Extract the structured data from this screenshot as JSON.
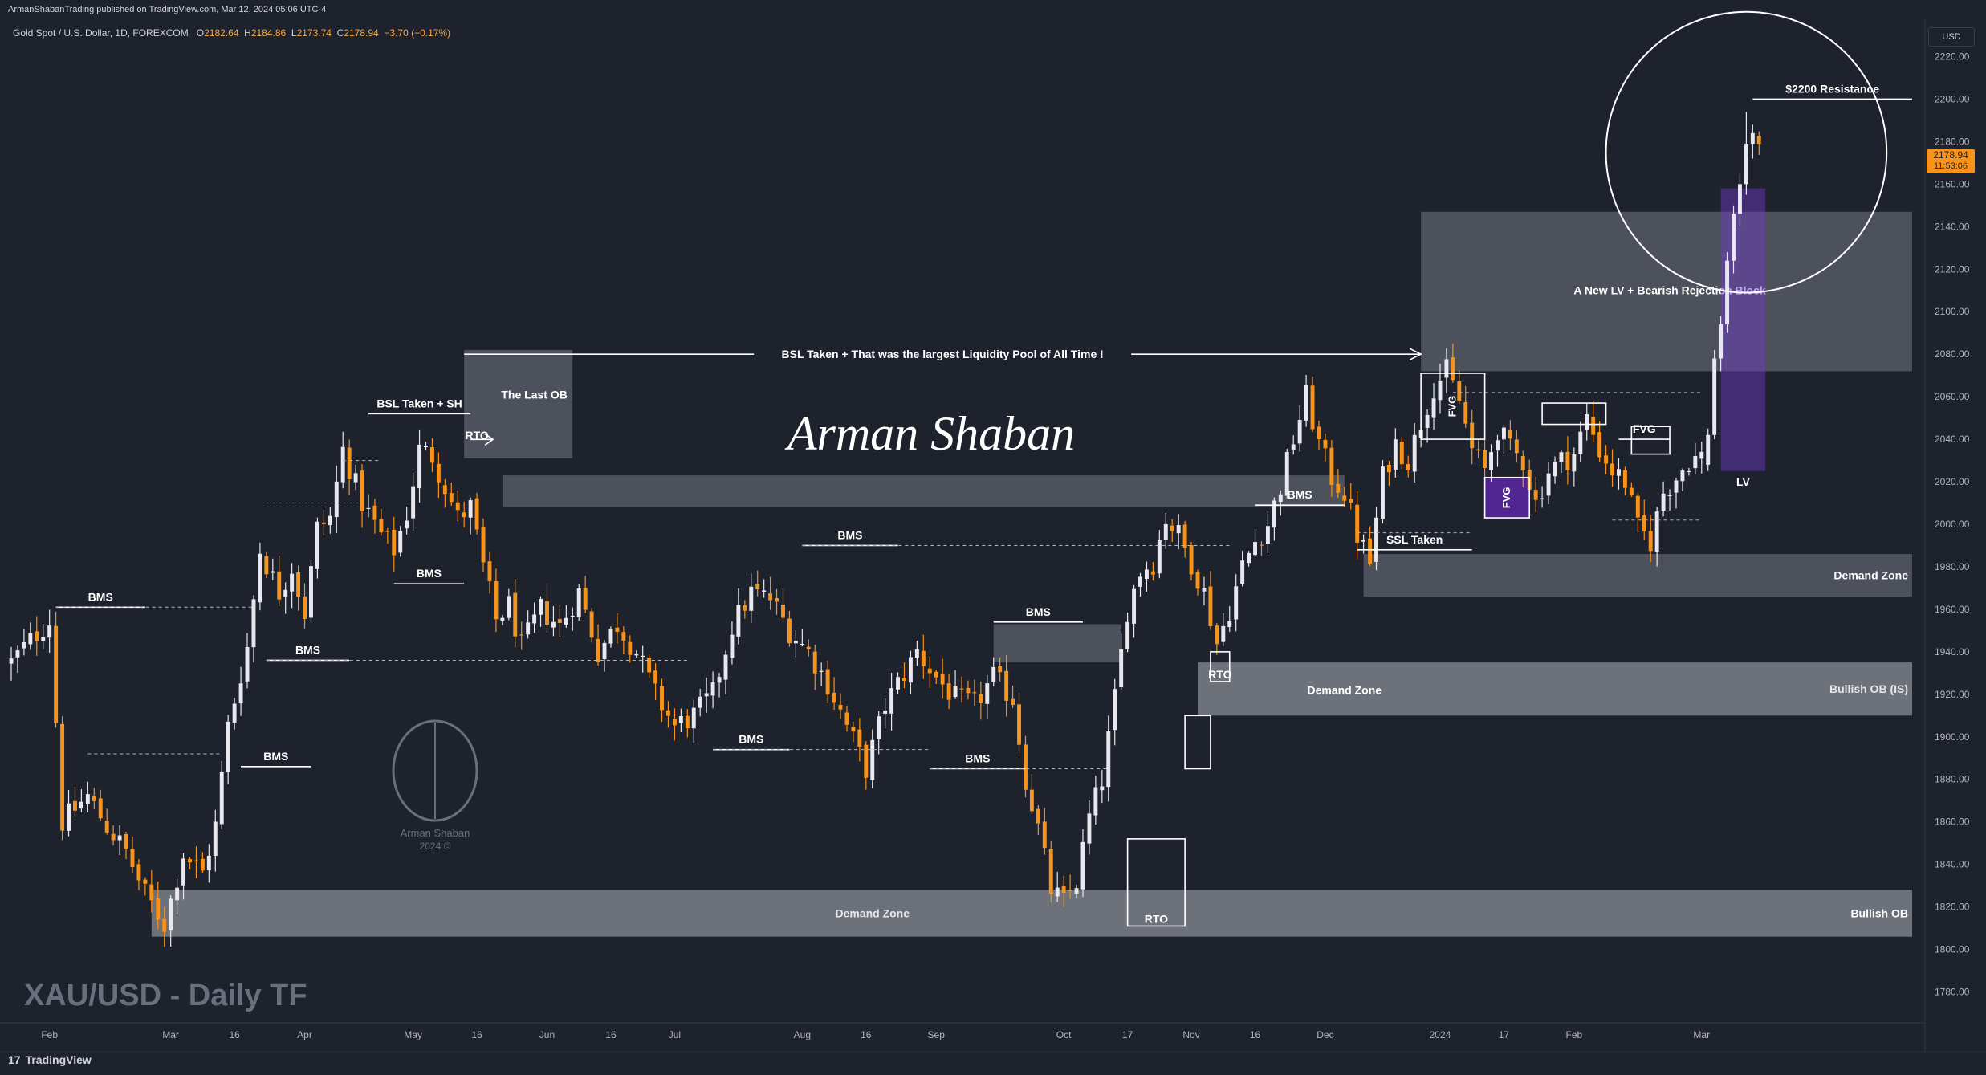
{
  "header": {
    "published": "ArmanShabanTrading published on TradingView.com, Mar 12, 2024 05:06 UTC-4",
    "symbol": "Gold Spot / U.S. Dollar, 1D, FOREXCOM",
    "ohlc": {
      "o_label": "O",
      "o": "2182.64",
      "h_label": "H",
      "h": "2184.86",
      "l_label": "L",
      "l": "2173.74",
      "c_label": "C",
      "c": "2178.94",
      "change": "−3.70 (−0.17%)"
    }
  },
  "footer": {
    "brand": "TradingView",
    "logo_glyph": "17"
  },
  "watermark": {
    "name_line1": "Arman Shaban",
    "name_line2": "2024 ©",
    "signature": "Arman Shaban"
  },
  "chart_data": {
    "type": "candlestick",
    "title": "XAU/USD - Daily TF",
    "currency": "USD",
    "yticks": [
      1780,
      1800,
      1820,
      1840,
      1860,
      1880,
      1900,
      1920,
      1940,
      1960,
      1980,
      2000,
      2020,
      2040,
      2060,
      2080,
      2100,
      2120,
      2140,
      2160,
      2180,
      2200,
      2220
    ],
    "ytick_labels": [
      "1780.00",
      "1800.00",
      "1820.00",
      "1840.00",
      "1860.00",
      "1880.00",
      "1900.00",
      "1920.00",
      "1940.00",
      "1960.00",
      "1980.00",
      "2000.00",
      "2020.00",
      "2040.00",
      "2060.00",
      "2080.00",
      "2100.00",
      "2120.00",
      "2140.00",
      "2160.00",
      "2180.00",
      "2200.00",
      "2220.00"
    ],
    "ylim": [
      1770,
      2230
    ],
    "xlim": [
      0,
      298
    ],
    "xticks": [
      {
        "i": 6,
        "label": "Feb"
      },
      {
        "i": 25,
        "label": "Mar"
      },
      {
        "i": 35,
        "label": "16"
      },
      {
        "i": 46,
        "label": "Apr"
      },
      {
        "i": 63,
        "label": "May"
      },
      {
        "i": 73,
        "label": "16"
      },
      {
        "i": 84,
        "label": "Jun"
      },
      {
        "i": 94,
        "label": "16"
      },
      {
        "i": 104,
        "label": "Jul"
      },
      {
        "i": 124,
        "label": "Aug"
      },
      {
        "i": 134,
        "label": "16"
      },
      {
        "i": 145,
        "label": "Sep"
      },
      {
        "i": 165,
        "label": "Oct"
      },
      {
        "i": 175,
        "label": "17"
      },
      {
        "i": 185,
        "label": "Nov"
      },
      {
        "i": 195,
        "label": "16"
      },
      {
        "i": 206,
        "label": "Dec"
      },
      {
        "i": 224,
        "label": "2024"
      },
      {
        "i": 234,
        "label": "17"
      },
      {
        "i": 245,
        "label": "Feb"
      },
      {
        "i": 265,
        "label": "Mar"
      }
    ],
    "last_price": {
      "value": 2178.94,
      "label": "2178.94",
      "countdown": "11:53:06"
    },
    "anchors": [
      [
        0,
        1935
      ],
      [
        2,
        1942
      ],
      [
        6,
        1955
      ],
      [
        8,
        1860
      ],
      [
        12,
        1872
      ],
      [
        15,
        1858
      ],
      [
        18,
        1846
      ],
      [
        21,
        1826
      ],
      [
        24,
        1812
      ],
      [
        27,
        1845
      ],
      [
        30,
        1836
      ],
      [
        32,
        1858
      ],
      [
        34,
        1905
      ],
      [
        37,
        1942
      ],
      [
        39,
        1988
      ],
      [
        42,
        1968
      ],
      [
        44,
        1980
      ],
      [
        46,
        1958
      ],
      [
        48,
        1998
      ],
      [
        50,
        2003
      ],
      [
        52,
        2035
      ],
      [
        55,
        2010
      ],
      [
        58,
        1995
      ],
      [
        60,
        1988
      ],
      [
        62,
        2005
      ],
      [
        64,
        2035
      ],
      [
        66,
        2032
      ],
      [
        68,
        2018
      ],
      [
        70,
        2003
      ],
      [
        72,
        2008
      ],
      [
        74,
        1980
      ],
      [
        76,
        1955
      ],
      [
        78,
        1962
      ],
      [
        80,
        1942
      ],
      [
        83,
        1960
      ],
      [
        86,
        1952
      ],
      [
        89,
        1968
      ],
      [
        92,
        1940
      ],
      [
        95,
        1953
      ],
      [
        98,
        1940
      ],
      [
        101,
        1920
      ],
      [
        104,
        1905
      ],
      [
        107,
        1910
      ],
      [
        110,
        1920
      ],
      [
        113,
        1952
      ],
      [
        116,
        1968
      ],
      [
        119,
        1965
      ],
      [
        122,
        1950
      ],
      [
        125,
        1940
      ],
      [
        128,
        1925
      ],
      [
        131,
        1905
      ],
      [
        134,
        1885
      ],
      [
        137,
        1915
      ],
      [
        140,
        1930
      ],
      [
        142,
        1940
      ],
      [
        145,
        1928
      ],
      [
        148,
        1918
      ],
      [
        151,
        1915
      ],
      [
        154,
        1928
      ],
      [
        157,
        1918
      ],
      [
        159,
        1880
      ],
      [
        161,
        1857
      ],
      [
        163,
        1828
      ],
      [
        165,
        1822
      ],
      [
        167,
        1832
      ],
      [
        169,
        1862
      ],
      [
        171,
        1880
      ],
      [
        173,
        1918
      ],
      [
        175,
        1960
      ],
      [
        177,
        1978
      ],
      [
        179,
        1982
      ],
      [
        181,
        2003
      ],
      [
        183,
        1995
      ],
      [
        185,
        1982
      ],
      [
        187,
        1968
      ],
      [
        189,
        1944
      ],
      [
        191,
        1960
      ],
      [
        193,
        1980
      ],
      [
        195,
        1992
      ],
      [
        197,
        2000
      ],
      [
        199,
        2018
      ],
      [
        201,
        2040
      ],
      [
        203,
        2060
      ],
      [
        205,
        2038
      ],
      [
        207,
        2022
      ],
      [
        209,
        2015
      ],
      [
        211,
        1995
      ],
      [
        213,
        1982
      ],
      [
        215,
        2022
      ],
      [
        217,
        2038
      ],
      [
        219,
        2030
      ],
      [
        221,
        2048
      ],
      [
        223,
        2065
      ],
      [
        225,
        2072
      ],
      [
        227,
        2058
      ],
      [
        229,
        2035
      ],
      [
        231,
        2025
      ],
      [
        233,
        2045
      ],
      [
        235,
        2035
      ],
      [
        237,
        2030
      ],
      [
        239,
        2010
      ],
      [
        241,
        2025
      ],
      [
        243,
        2030
      ],
      [
        245,
        2033
      ],
      [
        247,
        2050
      ],
      [
        249,
        2035
      ],
      [
        251,
        2025
      ],
      [
        253,
        2020
      ],
      [
        255,
        1998
      ],
      [
        257,
        1992
      ],
      [
        259,
        2015
      ],
      [
        261,
        2022
      ],
      [
        263,
        2030
      ],
      [
        265,
        2032
      ],
      [
        267,
        2050
      ],
      [
        268,
        2085
      ],
      [
        269,
        2120
      ],
      [
        270,
        2145
      ],
      [
        271,
        2160
      ],
      [
        272,
        2178
      ],
      [
        273,
        2180
      ]
    ],
    "fixed_candles": [
      {
        "i": 266,
        "o": 2028,
        "h": 2045,
        "l": 2025,
        "c": 2042
      },
      {
        "i": 267,
        "o": 2042,
        "h": 2082,
        "l": 2040,
        "c": 2078
      },
      {
        "i": 268,
        "o": 2078,
        "h": 2098,
        "l": 2072,
        "c": 2094
      },
      {
        "i": 269,
        "o": 2094,
        "h": 2128,
        "l": 2090,
        "c": 2124
      },
      {
        "i": 270,
        "o": 2124,
        "h": 2150,
        "l": 2118,
        "c": 2146
      },
      {
        "i": 271,
        "o": 2146,
        "h": 2165,
        "l": 2140,
        "c": 2160
      },
      {
        "i": 272,
        "o": 2160,
        "h": 2194,
        "l": 2155,
        "c": 2179
      },
      {
        "i": 273,
        "o": 2179,
        "h": 2188,
        "l": 2172,
        "c": 2184
      },
      {
        "i": 274,
        "o": 2182.64,
        "h": 2184.86,
        "l": 2173.74,
        "c": 2178.94
      }
    ],
    "zones": [
      {
        "x1": 22,
        "x2": 298,
        "y1": 1806,
        "y2": 1828,
        "label": "Demand Zone",
        "align": "center",
        "lx": 135
      },
      {
        "x1": 22,
        "x2": 298,
        "y1": 1806,
        "y2": 1828,
        "label": "Bullish OB",
        "align": "right"
      },
      {
        "x1": 186,
        "x2": 298,
        "y1": 1910,
        "y2": 1935,
        "label": "Bullish OB (IS)",
        "align": "right"
      },
      {
        "x1": 186,
        "x2": 298,
        "y1": 1910,
        "y2": 1935,
        "label": "Demand Zone",
        "align": "center",
        "lx": 209,
        "ly": 1922
      },
      {
        "x1": 212,
        "x2": 298,
        "y1": 1966,
        "y2": 1986,
        "label": "Demand Zone",
        "align": "right"
      },
      {
        "x1": 77,
        "x2": 209,
        "y1": 2008,
        "y2": 2023,
        "label": "",
        "align": "none"
      },
      {
        "x1": 154,
        "x2": 174,
        "y1": 1935,
        "y2": 1953,
        "label": "",
        "align": "none"
      },
      {
        "x1": 71,
        "x2": 88,
        "y1": 2031,
        "y2": 2082,
        "label": "The Last OB",
        "align": "center",
        "lx": 82,
        "ly": 2061
      },
      {
        "x1": 221,
        "x2": 298,
        "y1": 2072,
        "y2": 2147,
        "label": "A New LV + Bearish Rejection Block",
        "align": "center",
        "lx": 260,
        "ly": 2110
      }
    ],
    "lines": [
      {
        "x1": 71,
        "x2": 221,
        "y": 2080,
        "label": "BSL Taken + That was the largest Liquidity Pool of All Time !",
        "arrow": true
      },
      {
        "x1": 273,
        "x2": 298,
        "y": 2200,
        "label": "$2200 Resistance"
      },
      {
        "x1": 56,
        "x2": 72,
        "y": 2052,
        "label": "BSL Taken + SH"
      },
      {
        "x1": 7,
        "x2": 21,
        "y": 1961,
        "label": "BMS"
      },
      {
        "x1": 40,
        "x2": 53,
        "y": 1936,
        "label": "BMS"
      },
      {
        "x1": 36,
        "x2": 47,
        "y": 1886,
        "label": "BMS"
      },
      {
        "x1": 60,
        "x2": 71,
        "y": 1972,
        "label": "BMS"
      },
      {
        "x1": 124,
        "x2": 139,
        "y": 1990,
        "label": "BMS"
      },
      {
        "x1": 110,
        "x2": 122,
        "y": 1894,
        "label": "BMS"
      },
      {
        "x1": 144,
        "x2": 159,
        "y": 1885,
        "label": "BMS"
      },
      {
        "x1": 154,
        "x2": 168,
        "y": 1954,
        "label": "BMS"
      },
      {
        "x1": 195,
        "x2": 209,
        "y": 2009,
        "label": "BMS"
      },
      {
        "x1": 211,
        "x2": 229,
        "y": 1988,
        "label": "SSL Taken"
      },
      {
        "x1": 252,
        "x2": 260,
        "y": 2040,
        "label": "FVG"
      }
    ],
    "dashed": [
      {
        "x1": 7,
        "x2": 38,
        "y": 1961
      },
      {
        "x1": 12,
        "x2": 33,
        "y": 1892
      },
      {
        "x1": 40,
        "x2": 55,
        "y": 2010
      },
      {
        "x1": 52,
        "x2": 58,
        "y": 2030
      },
      {
        "x1": 40,
        "x2": 106,
        "y": 1936
      },
      {
        "x1": 110,
        "x2": 144,
        "y": 1894
      },
      {
        "x1": 124,
        "x2": 191,
        "y": 1990
      },
      {
        "x1": 144,
        "x2": 172,
        "y": 1885
      },
      {
        "x1": 211,
        "x2": 229,
        "y": 1996
      },
      {
        "x1": 226,
        "x2": 265,
        "y": 2062
      },
      {
        "x1": 251,
        "x2": 265,
        "y": 2002
      }
    ],
    "rto_boxes": [
      {
        "x1": 175,
        "x2": 184,
        "y1": 1811,
        "y2": 1852,
        "label": "RTO"
      },
      {
        "x1": 184,
        "x2": 188,
        "y1": 1885,
        "y2": 1910,
        "label": ""
      },
      {
        "x1": 188,
        "x2": 191,
        "y1": 1926,
        "y2": 1940,
        "label": "RTO"
      },
      {
        "x1": 221,
        "x2": 231,
        "y1": 2040,
        "y2": 2071,
        "label": "FVG"
      },
      {
        "x1": 231,
        "x2": 238,
        "y1": 2003,
        "y2": 2022,
        "label": "FVG"
      },
      {
        "x1": 240,
        "x2": 250,
        "y1": 2047,
        "y2": 2057,
        "label": ""
      },
      {
        "x1": 254,
        "x2": 260,
        "y1": 2033,
        "y2": 2046,
        "label": ""
      }
    ],
    "fvg_fill": {
      "x1": 231,
      "x2": 238,
      "y1": 2003,
      "y2": 2022
    },
    "lv_rect": {
      "x1": 268,
      "x2": 275,
      "y1": 2025,
      "y2": 2158,
      "label": "LV"
    },
    "circle": {
      "cx": 272,
      "cy": 2175,
      "r": 22
    },
    "labels": [
      {
        "text": "RTO",
        "x": 72,
        "y": 2040
      }
    ]
  }
}
